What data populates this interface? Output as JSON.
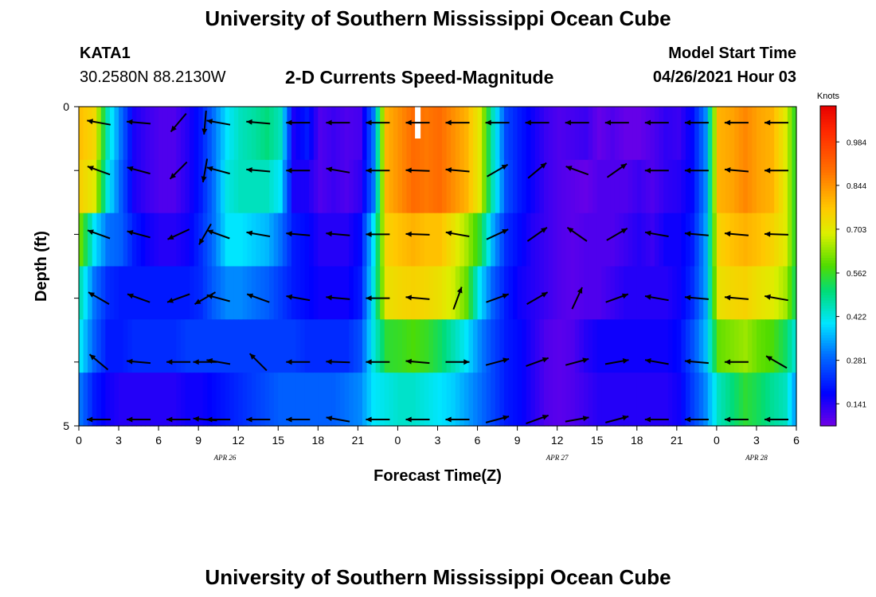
{
  "header": {
    "title": "University of Southern Mississippi Ocean Cube",
    "station": "KATA1",
    "coords": "30.2580N  88.2130W",
    "subtitle": "2-D Currents Speed-Magnitude",
    "model_start_label": "Model Start Time",
    "model_start_value": "04/26/2021 Hour 03"
  },
  "footer": {
    "title": "University of Southern Mississippi Ocean Cube"
  },
  "chart_data": {
    "type": "heatmap",
    "title": "2-D Currents Speed-Magnitude",
    "xlabel": "Forecast Time(Z)",
    "ylabel": "Depth (ft)",
    "x_range_hours": [
      0,
      54
    ],
    "y_range": [
      0,
      5
    ],
    "x_tick_labels": [
      "0",
      "3",
      "6",
      "9",
      "12",
      "15",
      "18",
      "21",
      "0",
      "3",
      "6",
      "9",
      "12",
      "15",
      "18",
      "21",
      "0",
      "3",
      "6"
    ],
    "y_tick_labels": [
      "0",
      "5"
    ],
    "date_labels": [
      {
        "text": "APR 26",
        "hour": 11
      },
      {
        "text": "APR 27",
        "hour": 36
      },
      {
        "text": "APR 28",
        "hour": 51
      }
    ],
    "colorbar": {
      "unit_label": "Knots",
      "min": 0.07,
      "max": 1.1,
      "ticks": [
        "0.984",
        "0.844",
        "0.703",
        "0.562",
        "0.422",
        "0.281",
        "0.141"
      ],
      "tick_values": [
        0.984,
        0.844,
        0.703,
        0.562,
        0.422,
        0.281,
        0.141
      ]
    },
    "depth_layers": [
      0.25,
      1.0,
      2.0,
      3.0,
      4.0,
      4.9
    ],
    "speed_by_hour": [
      [
        0.78,
        0.74,
        0.45,
        0.3,
        0.15,
        0.12,
        0.1,
        0.1,
        0.14,
        0.2,
        0.3,
        0.4,
        0.45,
        0.47,
        0.5,
        0.45,
        0.15,
        0.2,
        0.1,
        0.12,
        0.1,
        0.11,
        0.3,
        0.8,
        0.85,
        0.9,
        0.88,
        0.9,
        0.85,
        0.8,
        0.7,
        0.45,
        0.25,
        0.2,
        0.16,
        0.12,
        0.1,
        0.11,
        0.12,
        0.08,
        0.1,
        0.08,
        0.08,
        0.1,
        0.13,
        0.12,
        0.18,
        0.32,
        0.8,
        0.82,
        0.86,
        0.82,
        0.8,
        0.7,
        0.5
      ],
      [
        0.75,
        0.7,
        0.42,
        0.28,
        0.15,
        0.12,
        0.1,
        0.1,
        0.14,
        0.2,
        0.3,
        0.42,
        0.45,
        0.45,
        0.45,
        0.4,
        0.15,
        0.15,
        0.1,
        0.12,
        0.1,
        0.13,
        0.3,
        0.8,
        0.85,
        0.9,
        0.88,
        0.9,
        0.85,
        0.8,
        0.7,
        0.45,
        0.26,
        0.2,
        0.16,
        0.12,
        0.1,
        0.09,
        0.08,
        0.1,
        0.1,
        0.1,
        0.12,
        0.1,
        0.13,
        0.14,
        0.18,
        0.32,
        0.8,
        0.82,
        0.86,
        0.82,
        0.8,
        0.7,
        0.5
      ],
      [
        0.6,
        0.4,
        0.3,
        0.28,
        0.2,
        0.16,
        0.14,
        0.14,
        0.16,
        0.22,
        0.3,
        0.4,
        0.4,
        0.38,
        0.36,
        0.3,
        0.2,
        0.18,
        0.14,
        0.14,
        0.14,
        0.18,
        0.4,
        0.75,
        0.78,
        0.8,
        0.78,
        0.78,
        0.72,
        0.65,
        0.55,
        0.35,
        0.22,
        0.18,
        0.14,
        0.12,
        0.1,
        0.09,
        0.1,
        0.1,
        0.1,
        0.12,
        0.14,
        0.12,
        0.16,
        0.16,
        0.2,
        0.34,
        0.75,
        0.78,
        0.8,
        0.78,
        0.75,
        0.7,
        0.5
      ],
      [
        0.45,
        0.3,
        0.22,
        0.2,
        0.2,
        0.2,
        0.2,
        0.2,
        0.2,
        0.22,
        0.28,
        0.32,
        0.32,
        0.3,
        0.28,
        0.24,
        0.2,
        0.18,
        0.16,
        0.16,
        0.16,
        0.2,
        0.42,
        0.72,
        0.74,
        0.75,
        0.74,
        0.72,
        0.68,
        0.6,
        0.4,
        0.28,
        0.2,
        0.16,
        0.14,
        0.12,
        0.1,
        0.09,
        0.1,
        0.1,
        0.12,
        0.14,
        0.14,
        0.14,
        0.14,
        0.16,
        0.22,
        0.34,
        0.72,
        0.74,
        0.75,
        0.72,
        0.7,
        0.65,
        0.48
      ],
      [
        0.4,
        0.28,
        0.2,
        0.2,
        0.22,
        0.22,
        0.22,
        0.22,
        0.24,
        0.24,
        0.24,
        0.24,
        0.24,
        0.24,
        0.24,
        0.24,
        0.24,
        0.22,
        0.22,
        0.22,
        0.22,
        0.26,
        0.42,
        0.55,
        0.56,
        0.58,
        0.56,
        0.52,
        0.46,
        0.4,
        0.32,
        0.25,
        0.2,
        0.18,
        0.14,
        0.1,
        0.09,
        0.1,
        0.14,
        0.16,
        0.16,
        0.16,
        0.16,
        0.16,
        0.16,
        0.18,
        0.26,
        0.36,
        0.6,
        0.62,
        0.64,
        0.6,
        0.58,
        0.52,
        0.4
      ],
      [
        0.3,
        0.2,
        0.16,
        0.14,
        0.14,
        0.14,
        0.14,
        0.14,
        0.16,
        0.16,
        0.18,
        0.2,
        0.22,
        0.24,
        0.26,
        0.28,
        0.28,
        0.28,
        0.28,
        0.28,
        0.3,
        0.32,
        0.4,
        0.42,
        0.44,
        0.44,
        0.42,
        0.4,
        0.38,
        0.34,
        0.3,
        0.25,
        0.2,
        0.18,
        0.14,
        0.1,
        0.09,
        0.1,
        0.12,
        0.14,
        0.14,
        0.14,
        0.14,
        0.14,
        0.14,
        0.16,
        0.24,
        0.32,
        0.45,
        0.5,
        0.55,
        0.52,
        0.48,
        0.45,
        0.3
      ]
    ],
    "vector_hours": [
      1.5,
      4.5,
      7.5,
      9.5,
      10.5,
      13.5,
      16.5,
      19.5,
      22.5,
      25.5,
      28.5,
      31.5,
      34.5,
      37.5,
      40.5,
      43.5,
      46.5,
      49.5,
      52.5
    ],
    "vector_directions_deg": [
      [
        170,
        175,
        230,
        265,
        170,
        175,
        180,
        180,
        180,
        180,
        180,
        180,
        180,
        180,
        180,
        180,
        180,
        180,
        180
      ],
      [
        160,
        165,
        225,
        260,
        165,
        175,
        180,
        170,
        180,
        178,
        175,
        30,
        40,
        160,
        35,
        180,
        180,
        175,
        180
      ],
      [
        160,
        165,
        205,
        240,
        160,
        170,
        175,
        175,
        180,
        178,
        170,
        25,
        35,
        145,
        30,
        170,
        175,
        175,
        178
      ],
      [
        150,
        160,
        200,
        210,
        165,
        160,
        170,
        175,
        180,
        175,
        70,
        20,
        30,
        65,
        20,
        170,
        175,
        175,
        170
      ],
      [
        140,
        175,
        180,
        180,
        170,
        135,
        180,
        178,
        180,
        175,
        0,
        15,
        20,
        15,
        10,
        170,
        175,
        180,
        150
      ],
      [
        180,
        180,
        180,
        175,
        180,
        180,
        180,
        170,
        180,
        180,
        180,
        15,
        20,
        10,
        15,
        180,
        180,
        180,
        180
      ]
    ]
  }
}
